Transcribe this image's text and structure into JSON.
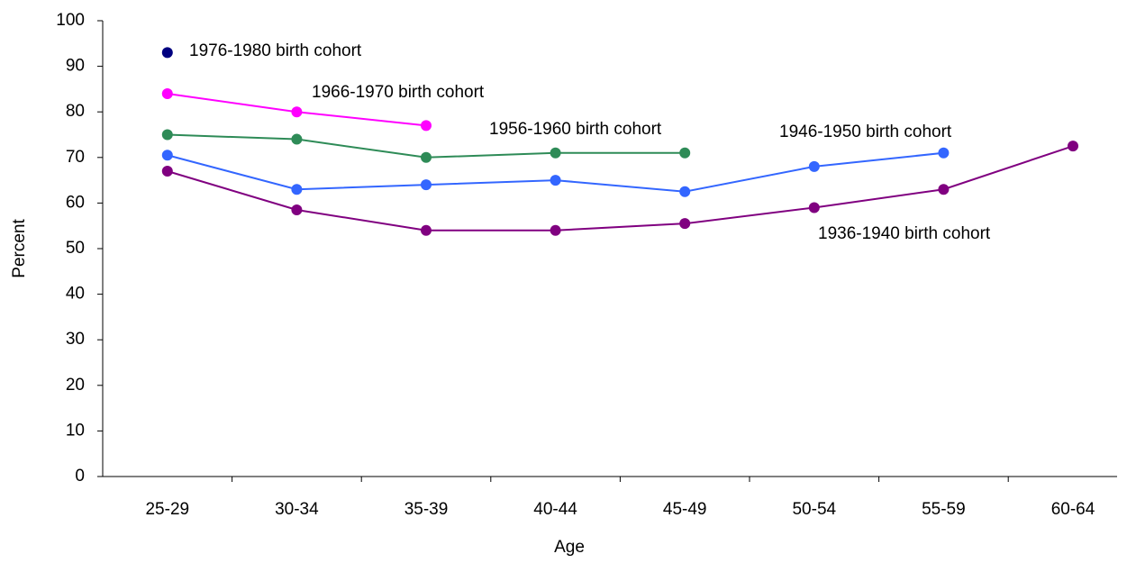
{
  "chart_data": {
    "type": "line",
    "x_label": "Age",
    "y_label": "Percent",
    "categories": [
      "25-29",
      "30-34",
      "35-39",
      "40-44",
      "45-49",
      "50-54",
      "55-59",
      "60-64"
    ],
    "series": [
      {
        "name": "1976-1980 birth cohort",
        "color": "#000080",
        "values": [
          93,
          null,
          null,
          null,
          null,
          null,
          null,
          null
        ]
      },
      {
        "name": "1966-1970 birth cohort",
        "color": "#ff00ff",
        "values": [
          84,
          80,
          77,
          null,
          null,
          null,
          null,
          null
        ]
      },
      {
        "name": "1956-1960 birth cohort",
        "color": "#2e8b57",
        "values": [
          75,
          74,
          70,
          71,
          71,
          null,
          null,
          null
        ]
      },
      {
        "name": "1946-1950 birth cohort",
        "color": "#3366ff",
        "values": [
          70.5,
          63,
          64,
          65,
          62.5,
          68,
          71,
          null
        ]
      },
      {
        "name": "1936-1940 birth cohort",
        "color": "#800080",
        "values": [
          67,
          58.5,
          54,
          54,
          55.5,
          59,
          63,
          72.5
        ]
      }
    ],
    "ylim": [
      0,
      100
    ],
    "yticks": [
      0,
      10,
      20,
      30,
      40,
      50,
      60,
      70,
      80,
      90,
      100
    ],
    "grid": false
  }
}
